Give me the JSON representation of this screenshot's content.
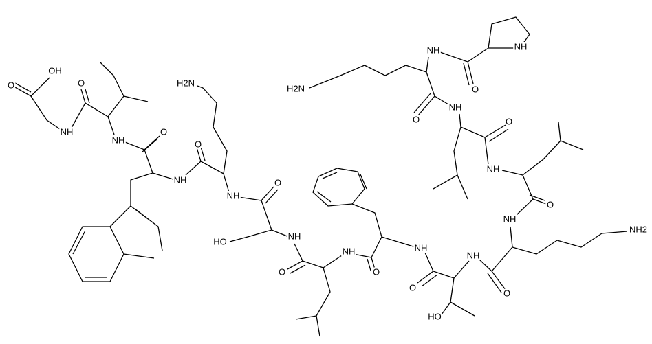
{
  "atoms": [
    "O",
    "OH",
    "NH",
    "O",
    "NH",
    "O",
    "NH",
    "H2N",
    "O",
    "NH",
    "O",
    "HO",
    "NH",
    "O",
    "NH",
    "O",
    "NH",
    "O",
    "HO",
    "NH",
    "O",
    "NH",
    "NH2",
    "O",
    "NH",
    "O",
    "NH",
    "O",
    "H2N",
    "NH",
    "O",
    "NH"
  ]
}
